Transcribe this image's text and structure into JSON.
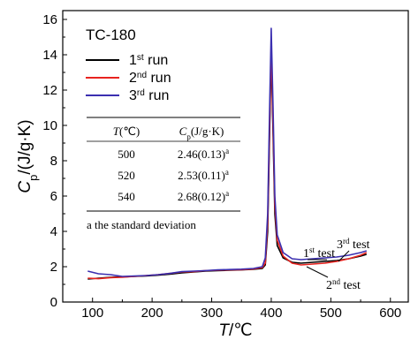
{
  "chart_data": {
    "type": "line",
    "title": "TC-180",
    "xlabel": "T/℃",
    "ylabel": "Cp/(J/g·K)",
    "xlim": [
      50,
      630
    ],
    "ylim": [
      0,
      16.5
    ],
    "xticks": [
      100,
      200,
      300,
      400,
      500,
      600
    ],
    "yticks": [
      0,
      2,
      4,
      6,
      8,
      10,
      12,
      14,
      16
    ],
    "grid": false,
    "legend_position": "top-left",
    "series": [
      {
        "name": "1st run",
        "color": "#000000",
        "points": [
          [
            92,
            1.3
          ],
          [
            110,
            1.35
          ],
          [
            130,
            1.4
          ],
          [
            150,
            1.42
          ],
          [
            170,
            1.45
          ],
          [
            190,
            1.48
          ],
          [
            210,
            1.52
          ],
          [
            230,
            1.58
          ],
          [
            250,
            1.65
          ],
          [
            270,
            1.7
          ],
          [
            290,
            1.75
          ],
          [
            310,
            1.78
          ],
          [
            330,
            1.8
          ],
          [
            350,
            1.82
          ],
          [
            370,
            1.85
          ],
          [
            385,
            1.9
          ],
          [
            390,
            2.1
          ],
          [
            394,
            4.0
          ],
          [
            397,
            9.0
          ],
          [
            400,
            14.2
          ],
          [
            403,
            9.5
          ],
          [
            406,
            5.0
          ],
          [
            410,
            3.2
          ],
          [
            420,
            2.5
          ],
          [
            435,
            2.25
          ],
          [
            450,
            2.2
          ],
          [
            470,
            2.25
          ],
          [
            490,
            2.3
          ],
          [
            510,
            2.35
          ],
          [
            530,
            2.45
          ],
          [
            550,
            2.6
          ],
          [
            560,
            2.7
          ]
        ]
      },
      {
        "name": "2nd run",
        "color": "#e8231f",
        "points": [
          [
            92,
            1.35
          ],
          [
            110,
            1.32
          ],
          [
            130,
            1.38
          ],
          [
            150,
            1.4
          ],
          [
            170,
            1.45
          ],
          [
            190,
            1.5
          ],
          [
            210,
            1.55
          ],
          [
            230,
            1.62
          ],
          [
            250,
            1.7
          ],
          [
            270,
            1.72
          ],
          [
            290,
            1.78
          ],
          [
            310,
            1.8
          ],
          [
            330,
            1.82
          ],
          [
            350,
            1.83
          ],
          [
            370,
            1.87
          ],
          [
            385,
            1.95
          ],
          [
            390,
            2.2
          ],
          [
            394,
            4.5
          ],
          [
            397,
            9.5
          ],
          [
            400,
            14.6
          ],
          [
            403,
            10.0
          ],
          [
            406,
            5.5
          ],
          [
            410,
            3.5
          ],
          [
            420,
            2.6
          ],
          [
            435,
            2.2
          ],
          [
            450,
            2.1
          ],
          [
            470,
            2.15
          ],
          [
            490,
            2.2
          ],
          [
            510,
            2.3
          ],
          [
            530,
            2.45
          ],
          [
            550,
            2.65
          ],
          [
            560,
            2.8
          ]
        ]
      },
      {
        "name": "3rd run",
        "color": "#3b2fb0",
        "points": [
          [
            92,
            1.75
          ],
          [
            110,
            1.6
          ],
          [
            130,
            1.55
          ],
          [
            150,
            1.45
          ],
          [
            170,
            1.47
          ],
          [
            190,
            1.5
          ],
          [
            210,
            1.55
          ],
          [
            230,
            1.62
          ],
          [
            250,
            1.72
          ],
          [
            270,
            1.75
          ],
          [
            290,
            1.78
          ],
          [
            310,
            1.82
          ],
          [
            330,
            1.84
          ],
          [
            350,
            1.86
          ],
          [
            370,
            1.9
          ],
          [
            385,
            2.0
          ],
          [
            390,
            2.5
          ],
          [
            394,
            5.0
          ],
          [
            397,
            10.5
          ],
          [
            400,
            15.5
          ],
          [
            403,
            11.0
          ],
          [
            406,
            6.0
          ],
          [
            410,
            3.8
          ],
          [
            420,
            2.8
          ],
          [
            435,
            2.45
          ],
          [
            450,
            2.4
          ],
          [
            470,
            2.45
          ],
          [
            490,
            2.5
          ],
          [
            510,
            2.55
          ],
          [
            530,
            2.65
          ],
          [
            550,
            2.8
          ],
          [
            560,
            2.9
          ]
        ]
      }
    ],
    "table": {
      "headers": [
        "T(℃)",
        "Cp(J/g·K)"
      ],
      "rows": [
        [
          "500",
          "2.46(0.13)a"
        ],
        [
          "520",
          "2.53(0.11)a"
        ],
        [
          "540",
          "2.68(0.12)a"
        ]
      ],
      "footnote": "a the standard deviation"
    },
    "annotations": [
      {
        "text": "1st test"
      },
      {
        "text": "2nd test"
      },
      {
        "text": "3rd test"
      }
    ]
  }
}
